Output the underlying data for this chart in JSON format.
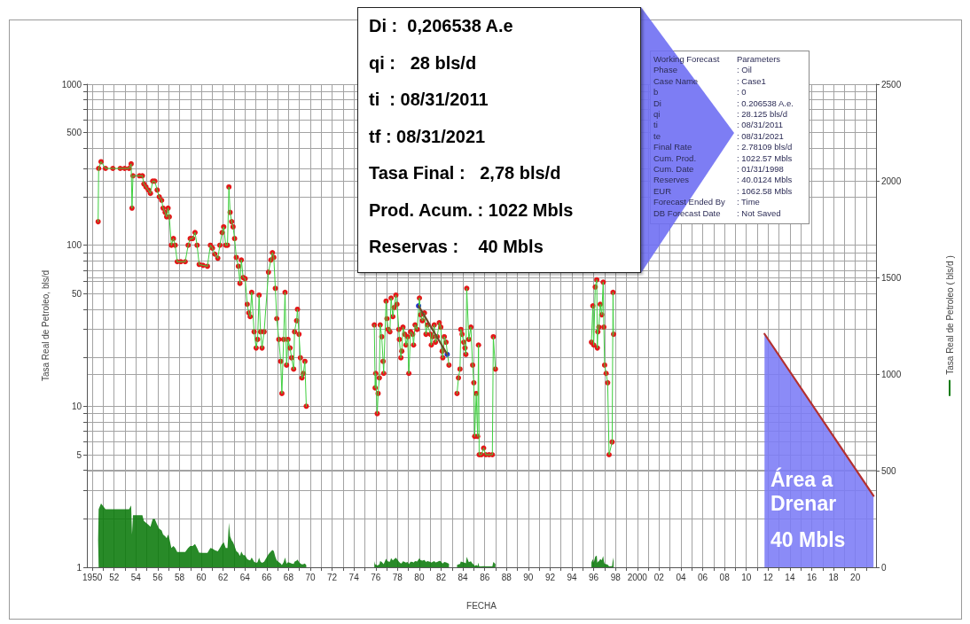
{
  "chart_data": [
    {
      "type": "line",
      "xlabel": "FECHA",
      "ylabel": "Tasa Real de Petroleo, bls/d",
      "y2label": "Tasa Real de Petroleo ( bls/d )",
      "log": "y",
      "grid": true,
      "xlim": [
        1949.5,
        2021.9
      ],
      "ylim": [
        1,
        1000
      ],
      "y2lim": [
        0,
        2500
      ],
      "xticks": [
        1950,
        {
          "value": 1951,
          "label": null
        },
        {
          "value": 1952,
          "label": "52"
        },
        {
          "value": 1953,
          "label": null
        },
        {
          "value": 1954,
          "label": "54"
        },
        {
          "value": 1955,
          "label": null
        },
        {
          "value": 1956,
          "label": "56"
        },
        {
          "value": 1957,
          "label": null
        },
        {
          "value": 1958,
          "label": "58"
        },
        {
          "value": 1959,
          "label": null
        },
        {
          "value": 1960,
          "label": "60"
        },
        {
          "value": 1961,
          "label": null
        },
        {
          "value": 1962,
          "label": "62"
        },
        {
          "value": 1963,
          "label": null
        },
        {
          "value": 1964,
          "label": "64"
        },
        {
          "value": 1965,
          "label": null
        },
        {
          "value": 1966,
          "label": "66"
        },
        {
          "value": 1967,
          "label": null
        },
        {
          "value": 1968,
          "label": "68"
        },
        {
          "value": 1969,
          "label": null
        },
        {
          "value": 1970,
          "label": "70"
        },
        {
          "value": 1971,
          "label": null
        },
        {
          "value": 1972,
          "label": "72"
        },
        {
          "value": 1973,
          "label": null
        },
        {
          "value": 1974,
          "label": "74"
        },
        {
          "value": 1975,
          "label": null
        },
        {
          "value": 1976,
          "label": "76"
        },
        {
          "value": 1977,
          "label": null
        },
        {
          "value": 1978,
          "label": "78"
        },
        {
          "value": 1979,
          "label": null
        },
        {
          "value": 1980,
          "label": "80"
        },
        {
          "value": 1981,
          "label": null
        },
        {
          "value": 1982,
          "label": "82"
        },
        {
          "value": 1983,
          "label": null
        },
        {
          "value": 1984,
          "label": "84"
        },
        {
          "value": 1985,
          "label": null
        },
        {
          "value": 1986,
          "label": "86"
        },
        {
          "value": 1987,
          "label": null
        },
        {
          "value": 1988,
          "label": "88"
        },
        {
          "value": 1989,
          "label": null
        },
        {
          "value": 1990,
          "label": "90"
        },
        {
          "value": 1991,
          "label": null
        },
        {
          "value": 1992,
          "label": "92"
        },
        {
          "value": 1993,
          "label": null
        },
        {
          "value": 1994,
          "label": "94"
        },
        {
          "value": 1995,
          "label": null
        },
        {
          "value": 1996,
          "label": "96"
        },
        {
          "value": 1997,
          "label": null
        },
        {
          "value": 1998,
          "label": "98"
        },
        {
          "value": 1999,
          "label": null
        },
        2000,
        {
          "value": 2001,
          "label": null
        },
        {
          "value": 2002,
          "label": "02"
        },
        {
          "value": 2003,
          "label": null
        },
        {
          "value": 2004,
          "label": "04"
        },
        {
          "value": 2005,
          "label": null
        },
        {
          "value": 2006,
          "label": "06"
        },
        {
          "value": 2007,
          "label": null
        },
        {
          "value": 2008,
          "label": "08"
        },
        {
          "value": 2009,
          "label": null
        },
        {
          "value": 2010,
          "label": "10"
        },
        {
          "value": 2011,
          "label": null
        },
        {
          "value": 2012,
          "label": "12"
        },
        {
          "value": 2013,
          "label": null
        },
        {
          "value": 2014,
          "label": "14"
        },
        {
          "value": 2015,
          "label": null
        },
        {
          "value": 2016,
          "label": "16"
        },
        {
          "value": 2017,
          "label": null
        },
        {
          "value": 2018,
          "label": "18"
        },
        {
          "value": 2019,
          "label": null
        },
        {
          "value": 2020,
          "label": "20"
        },
        {
          "value": 2021,
          "label": null
        }
      ],
      "yticks": [
        1,
        {
          "value": 2,
          "label": null
        },
        {
          "value": 3,
          "label": null
        },
        {
          "value": 4,
          "label": null
        },
        5,
        {
          "value": 6,
          "label": null
        },
        {
          "value": 7,
          "label": null
        },
        {
          "value": 8,
          "label": null
        },
        {
          "value": 9,
          "label": null
        },
        10,
        {
          "value": 20,
          "label": null
        },
        {
          "value": 30,
          "label": null
        },
        {
          "value": 40,
          "label": null
        },
        50,
        {
          "value": 60,
          "label": null
        },
        {
          "value": 70,
          "label": null
        },
        {
          "value": 80,
          "label": null
        },
        {
          "value": 90,
          "label": null
        },
        100,
        {
          "value": 200,
          "label": null
        },
        {
          "value": 300,
          "label": null
        },
        {
          "value": 400,
          "label": null
        },
        500,
        {
          "value": 600,
          "label": null
        },
        {
          "value": 700,
          "label": null
        },
        {
          "value": 800,
          "label": null
        },
        {
          "value": 900,
          "label": null
        },
        1000
      ],
      "y2ticks": [
        0,
        500,
        1000,
        1500,
        2000,
        2500
      ],
      "x": [
        1950.53,
        1950.58,
        1950.8,
        1951.21,
        1951.88,
        1952.56,
        1952.97,
        1953.37,
        1953.56,
        1953.64,
        1953.73,
        1954.32,
        1954.59,
        1954.73,
        1954.92,
        1955.14,
        1955.33,
        1955.54,
        1955.73,
        1955.95,
        1956.14,
        1956.36,
        1956.49,
        1956.68,
        1956.82,
        1956.95,
        1957.06,
        1957.25,
        1957.44,
        1957.6,
        1957.79,
        1958.12,
        1958.52,
        1958.79,
        1958.98,
        1959.2,
        1959.42,
        1959.61,
        1959.8,
        1960.15,
        1960.56,
        1960.83,
        1961.02,
        1961.24,
        1961.51,
        1961.7,
        1961.91,
        1962.05,
        1962.24,
        1962.4,
        1962.53,
        1962.64,
        1962.78,
        1962.91,
        1963.05,
        1963.21,
        1963.4,
        1963.54,
        1963.67,
        1963.84,
        1964.02,
        1964.21,
        1964.35,
        1964.48,
        1964.62,
        1964.84,
        1965.03,
        1965.16,
        1965.3,
        1965.43,
        1965.57,
        1965.76,
        1966.16,
        1966.38,
        1966.52,
        1966.65,
        1966.79,
        1966.92,
        1967.11,
        1967.28,
        1967.39,
        1967.55,
        1967.68,
        1967.82,
        1967.95,
        1968.14,
        1968.28,
        1968.47,
        1968.55,
        1968.74,
        1968.82,
        1968.96,
        1969.09,
        1969.23,
        1969.36,
        1969.5,
        1969.63,
        1972.5,
        1975.87,
        1975.95,
        1976,
        1976.14,
        1976.22,
        1976.33,
        1976.41,
        1976.55,
        1976.68,
        1976.73,
        1976.95,
        1977.03,
        1977.14,
        1977.3,
        1977.41,
        1977.57,
        1977.68,
        1977.85,
        1977.95,
        1978.12,
        1978.17,
        1978.31,
        1978.39,
        1978.5,
        1978.66,
        1978.77,
        1978.93,
        1979.04,
        1979.2,
        1979.39,
        1979.47,
        1979.61,
        1979.8,
        1980.01,
        1980.12,
        1980.28,
        1980.47,
        1980.61,
        1980.75,
        1981.02,
        1981.1,
        1981.21,
        1981.37,
        1981.48,
        1981.64,
        1981.83,
        1981.97,
        1982.1,
        1982.15,
        1982.29,
        1982.45,
        1982.72,
        1983.1,
        1983.46,
        1983.59,
        1983.73,
        1983.81,
        1983.92,
        1984.08,
        1984.19,
        1984.27,
        1984.35,
        1984.54,
        1984.73,
        1984.89,
        1985,
        1985.08,
        1985.22,
        1985.35,
        1985.43,
        1985.49,
        1985.7,
        1985.9,
        1986.1,
        1986.4,
        1986.7,
        1986.79,
        1986.98,
        1991,
        1995.79,
        1995.92,
        1996,
        1996.14,
        1996.28,
        1996.33,
        1996.38,
        1996.47,
        1996.6,
        1996.74,
        1996.87,
        1996.93,
        1997,
        1997.14,
        1997.28,
        1997.41,
        1997.69,
        1997.77,
        1997.82
      ],
      "series": [
        {
          "type": "area",
          "axis": "y2",
          "color": "#0a7a0a",
          "values": [
            140,
            300,
            330,
            300,
            300,
            300,
            300,
            300,
            320,
            170,
            270,
            270,
            270,
            240,
            230,
            220,
            210,
            250,
            250,
            220,
            200,
            190,
            170,
            160,
            150,
            170,
            150,
            100,
            110,
            100,
            79,
            79,
            79,
            100,
            110,
            110,
            120,
            100,
            76,
            75,
            74,
            100,
            96,
            88,
            83,
            100,
            120,
            130,
            100,
            100,
            230,
            160,
            140,
            130,
            110,
            84,
            74,
            58,
            81,
            63,
            62,
            43,
            38,
            36,
            51,
            29,
            23,
            26,
            49,
            29,
            23,
            29,
            68,
            81,
            90,
            84,
            54,
            35,
            26,
            19,
            12,
            26,
            51,
            18,
            26,
            23,
            20,
            17,
            29,
            34,
            40,
            28,
            20,
            15,
            16,
            19,
            10,
            null,
            32,
            13,
            16,
            9,
            12,
            15,
            32,
            27,
            19,
            16,
            45,
            35,
            30,
            29,
            47,
            36,
            41,
            49,
            43,
            30,
            26,
            20,
            22,
            31,
            28,
            24,
            27,
            16,
            29,
            28,
            24,
            32,
            30,
            47,
            37,
            34,
            38,
            28,
            32,
            28,
            24,
            27,
            32,
            25,
            27,
            33,
            31,
            22,
            20,
            27,
            25,
            18,
            null,
            12,
            15,
            17,
            30,
            28,
            25,
            23,
            21,
            54,
            26,
            31,
            18,
            14,
            6.5,
            12,
            6.5,
            24,
            5,
            5,
            5.5,
            5,
            5,
            5,
            27,
            17,
            null,
            25,
            42,
            24,
            55,
            61,
            23,
            29,
            31,
            43,
            37,
            59,
            31,
            18,
            16,
            14,
            5,
            6,
            51,
            28
          ]
        },
        {
          "type": "area",
          "color": "#7b7bf6",
          "x": [
            2011.67,
            2021.67
          ],
          "values": [
            28.125,
            2.78
          ]
        },
        {
          "type": "line",
          "color": "#3fcf3f",
          "values": [
            140,
            300,
            330,
            300,
            300,
            300,
            300,
            300,
            320,
            170,
            270,
            270,
            270,
            240,
            230,
            220,
            210,
            250,
            250,
            220,
            200,
            190,
            170,
            160,
            150,
            170,
            150,
            100,
            110,
            100,
            79,
            79,
            79,
            100,
            110,
            110,
            120,
            100,
            76,
            75,
            74,
            100,
            96,
            88,
            83,
            100,
            120,
            130,
            100,
            100,
            230,
            160,
            140,
            130,
            110,
            84,
            74,
            58,
            81,
            63,
            62,
            43,
            38,
            36,
            51,
            29,
            23,
            26,
            49,
            29,
            23,
            29,
            68,
            81,
            90,
            84,
            54,
            35,
            26,
            19,
            12,
            26,
            51,
            18,
            26,
            23,
            20,
            17,
            29,
            34,
            40,
            28,
            20,
            15,
            16,
            19,
            10,
            null,
            32,
            13,
            16,
            9,
            12,
            15,
            32,
            27,
            19,
            16,
            45,
            35,
            30,
            29,
            47,
            36,
            41,
            49,
            43,
            30,
            26,
            20,
            22,
            31,
            28,
            24,
            27,
            16,
            29,
            28,
            24,
            32,
            30,
            47,
            37,
            34,
            38,
            28,
            32,
            28,
            24,
            27,
            32,
            25,
            27,
            33,
            31,
            22,
            20,
            27,
            25,
            18,
            null,
            12,
            15,
            17,
            30,
            28,
            25,
            23,
            21,
            54,
            26,
            31,
            18,
            14,
            6.5,
            12,
            6.5,
            24,
            5,
            5,
            5.5,
            5,
            5,
            5,
            27,
            17,
            null,
            25,
            42,
            24,
            55,
            61,
            23,
            29,
            31,
            43,
            37,
            59,
            31,
            18,
            16,
            14,
            5,
            6,
            51,
            28
          ]
        },
        {
          "type": "scatter",
          "color": "#e21a1a",
          "values": [
            140,
            300,
            330,
            300,
            300,
            300,
            300,
            300,
            320,
            170,
            270,
            270,
            270,
            240,
            230,
            220,
            210,
            250,
            250,
            220,
            200,
            190,
            170,
            160,
            150,
            170,
            150,
            100,
            110,
            100,
            79,
            79,
            79,
            100,
            110,
            110,
            120,
            100,
            76,
            75,
            74,
            100,
            96,
            88,
            83,
            100,
            120,
            130,
            100,
            100,
            230,
            160,
            140,
            130,
            110,
            84,
            74,
            58,
            81,
            63,
            62,
            43,
            38,
            36,
            51,
            29,
            23,
            26,
            49,
            29,
            23,
            29,
            68,
            81,
            90,
            84,
            54,
            35,
            26,
            19,
            12,
            26,
            51,
            18,
            26,
            23,
            20,
            17,
            29,
            34,
            40,
            28,
            20,
            15,
            16,
            19,
            10,
            null,
            32,
            13,
            16,
            9,
            12,
            15,
            32,
            27,
            19,
            16,
            45,
            35,
            30,
            29,
            47,
            36,
            41,
            49,
            43,
            30,
            26,
            20,
            22,
            31,
            28,
            24,
            27,
            16,
            29,
            28,
            24,
            32,
            30,
            47,
            37,
            34,
            38,
            28,
            32,
            28,
            24,
            27,
            32,
            25,
            27,
            33,
            31,
            22,
            20,
            27,
            25,
            18,
            null,
            12,
            15,
            17,
            30,
            28,
            25,
            23,
            21,
            54,
            26,
            31,
            18,
            14,
            6.5,
            12,
            6.5,
            24,
            5,
            5,
            5.5,
            5,
            5,
            5,
            27,
            17,
            null,
            25,
            42,
            24,
            55,
            61,
            23,
            29,
            31,
            43,
            37,
            59,
            31,
            18,
            16,
            14,
            5,
            6,
            51,
            28
          ]
        },
        {
          "type": "line",
          "color": "#6e4b2a",
          "x": [
            1979.93,
            1982.56
          ],
          "values": [
            42,
            21
          ]
        },
        {
          "type": "scatter",
          "color": "#1f2fd0",
          "x": [
            1979.93,
            1982.56
          ],
          "values": [
            42,
            21
          ]
        },
        {
          "type": "line",
          "color": "#b33030",
          "x": [
            2011.67,
            2021.67
          ],
          "values": [
            28.125,
            2.78
          ]
        }
      ],
      "annotations": [
        "Área a Drenar",
        "40 Mbls"
      ]
    },
    {
      "type": "other",
      "annotations": [
        "Di :  0,206538 A.e",
        "qi :   28 bls/d",
        "ti  : 08/31/2011",
        "tf : 08/31/2021",
        "Tasa Final :   2,78 bls/d",
        "Prod. Acum. : 1022 Mbls",
        "Reservas :    40 Mbls"
      ]
    },
    {
      "type": "other",
      "annotations": [
        "Working Forecast",
        "Parameters",
        "Phase",
        ": Oil",
        "Case Name",
        ": Case1",
        "b",
        ": 0",
        "Di",
        ": 0.206538 A.e.",
        "qi",
        ": 28.125 bls/d",
        "ti",
        ": 08/31/2011",
        "te",
        ": 08/31/2021",
        "Final Rate",
        ": 2.78109 bls/d",
        "Cum. Prod.",
        ": 1022.57 Mbls",
        "Cum. Date",
        ": 01/31/1998",
        "Reserves",
        ": 40.0124 Mbls",
        "EUR",
        ": 1062.58 Mbls",
        "Forecast Ended By",
        ": Time",
        "DB Forecast Date",
        ": Not Saved"
      ]
    }
  ]
}
